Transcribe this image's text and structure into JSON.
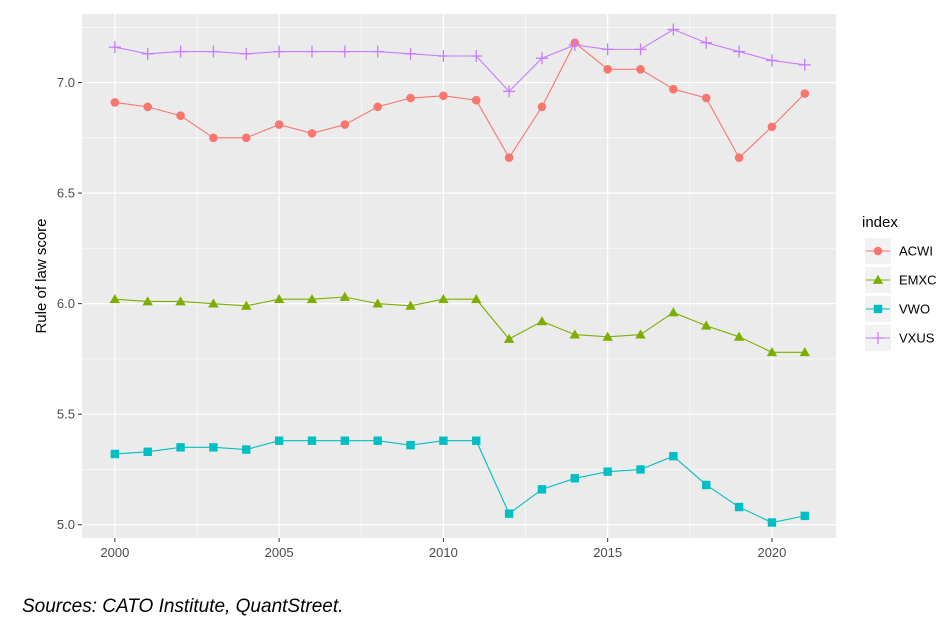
{
  "chart_data": {
    "type": "line",
    "title": "",
    "xlabel": "",
    "ylabel": "Rule of law score",
    "xlim": [
      1999.0,
      2021.95
    ],
    "ylim": [
      4.94,
      7.31
    ],
    "x_ticks": [
      2000,
      2005,
      2010,
      2015,
      2020
    ],
    "y_ticks": [
      5.0,
      5.5,
      6.0,
      6.5,
      7.0
    ],
    "y_tick_labels": [
      "5.0",
      "5.5",
      "6.0",
      "6.5",
      "7.0"
    ],
    "grid": true,
    "legend": {
      "title": "index",
      "position": "right"
    },
    "x": [
      2000,
      2001,
      2002,
      2003,
      2004,
      2005,
      2006,
      2007,
      2008,
      2009,
      2010,
      2011,
      2012,
      2013,
      2014,
      2015,
      2016,
      2017,
      2018,
      2019,
      2020,
      2021
    ],
    "series": [
      {
        "name": "ACWI",
        "color": "#F8766D",
        "marker": "circle",
        "values": [
          6.91,
          6.89,
          6.85,
          6.75,
          6.75,
          6.81,
          6.77,
          6.81,
          6.89,
          6.93,
          6.94,
          6.92,
          6.66,
          6.89,
          7.18,
          7.06,
          7.06,
          6.97,
          6.93,
          6.66,
          6.8,
          6.95
        ]
      },
      {
        "name": "EMXC",
        "color": "#7CAE00",
        "marker": "triangle",
        "values": [
          6.02,
          6.01,
          6.01,
          6.0,
          5.99,
          6.02,
          6.02,
          6.03,
          6.0,
          5.99,
          6.02,
          6.02,
          5.84,
          5.92,
          5.86,
          5.85,
          5.86,
          5.96,
          5.9,
          5.85,
          5.78,
          5.78
        ]
      },
      {
        "name": "VWO",
        "color": "#00BFC4",
        "marker": "square",
        "values": [
          5.32,
          5.33,
          5.35,
          5.35,
          5.34,
          5.38,
          5.38,
          5.38,
          5.38,
          5.36,
          5.38,
          5.38,
          5.05,
          5.16,
          5.21,
          5.24,
          5.25,
          5.31,
          5.18,
          5.08,
          5.01,
          5.04
        ]
      },
      {
        "name": "VXUS",
        "color": "#C77CFF",
        "marker": "plus",
        "values": [
          7.16,
          7.13,
          7.14,
          7.14,
          7.13,
          7.14,
          7.14,
          7.14,
          7.14,
          7.13,
          7.12,
          7.12,
          6.96,
          7.11,
          7.17,
          7.15,
          7.15,
          7.24,
          7.18,
          7.14,
          7.1,
          7.08
        ]
      }
    ]
  },
  "caption": "Sources: CATO Institute, QuantStreet."
}
